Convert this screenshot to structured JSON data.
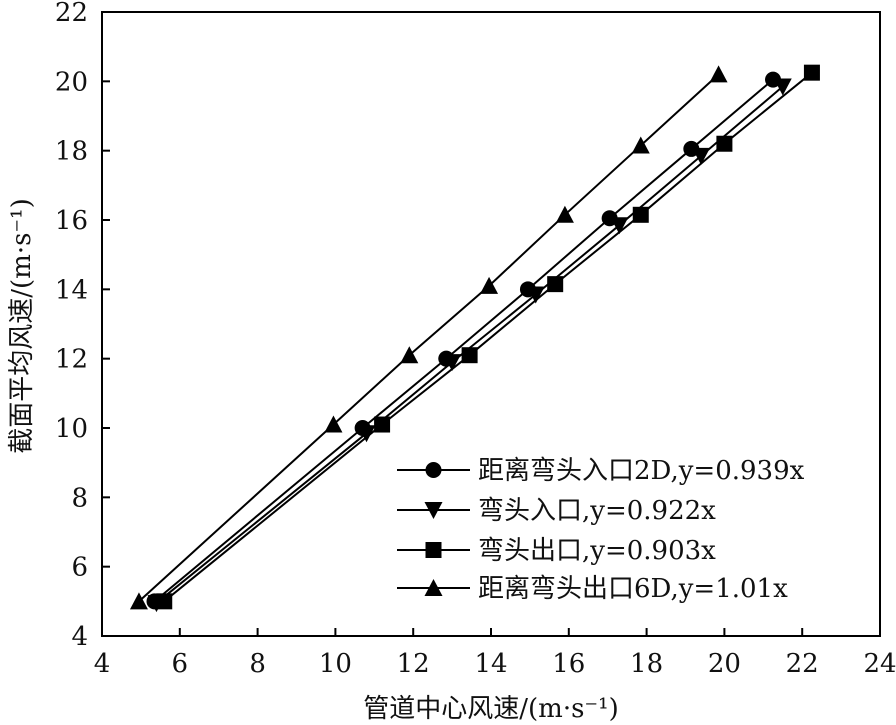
{
  "chart_data": {
    "type": "line",
    "title": "",
    "xlabel": "管道中心风速/(m·s⁻¹)",
    "ylabel": "截面平均风速/(m·s⁻¹)",
    "xlim": [
      4,
      24
    ],
    "ylim": [
      4,
      22
    ],
    "xticks": [
      4,
      6,
      8,
      10,
      12,
      14,
      16,
      18,
      20,
      22,
      24
    ],
    "yticks": [
      4,
      6,
      8,
      10,
      12,
      14,
      16,
      18,
      20,
      22
    ],
    "grid": false,
    "legend_position": "bottom-right",
    "series": [
      {
        "name": "距离弯头入口2D,y=0.939x",
        "marker": "circle",
        "color": "#000000",
        "x": [
          5.35,
          10.7,
          12.85,
          14.95,
          17.05,
          19.15,
          21.25
        ],
        "y": [
          5.0,
          10.0,
          12.0,
          14.0,
          16.05,
          18.05,
          20.05
        ]
      },
      {
        "name": "弯头入口,y=0.922x",
        "marker": "triangle-down",
        "color": "#000000",
        "x": [
          5.4,
          10.8,
          13.0,
          15.15,
          17.3,
          19.4,
          21.5
        ],
        "y": [
          4.95,
          9.85,
          11.9,
          13.85,
          15.85,
          17.85,
          19.85
        ]
      },
      {
        "name": "弯头出口,y=0.903x",
        "marker": "square",
        "color": "#000000",
        "x": [
          5.6,
          11.2,
          13.45,
          15.65,
          17.85,
          20.0,
          22.25
        ],
        "y": [
          5.0,
          10.1,
          12.1,
          14.15,
          16.15,
          18.2,
          20.25
        ]
      },
      {
        "name": "距离弯头出口6D,y=1.01x",
        "marker": "triangle-up",
        "color": "#000000",
        "x": [
          4.95,
          9.95,
          11.9,
          13.95,
          15.9,
          17.85,
          19.85
        ],
        "y": [
          5.0,
          10.1,
          12.1,
          14.1,
          16.15,
          18.15,
          20.2
        ]
      }
    ]
  }
}
